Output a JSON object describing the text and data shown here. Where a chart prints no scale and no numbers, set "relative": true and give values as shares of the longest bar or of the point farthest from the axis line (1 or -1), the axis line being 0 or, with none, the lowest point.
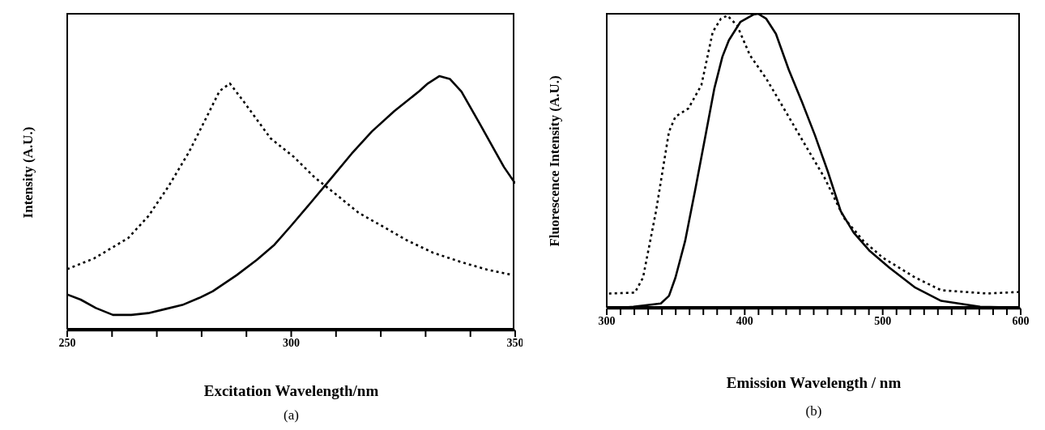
{
  "chart_data": [
    {
      "type": "line",
      "title": "(a)",
      "xlabel": "Excitation Wavelength/nm",
      "ylabel": "Intensity (A.U.)",
      "relative": true,
      "xlim": [
        250,
        350
      ],
      "xticks": [
        250,
        {
          "value": 260,
          "label": null
        },
        {
          "value": 270,
          "label": null
        },
        {
          "value": 280,
          "label": null
        },
        {
          "value": 290,
          "label": null
        },
        300,
        {
          "value": 310,
          "label": null
        },
        {
          "value": 320,
          "label": null
        },
        {
          "value": 330,
          "label": null
        },
        {
          "value": 340,
          "label": null
        },
        350
      ],
      "marker": "none",
      "series": [
        {
          "color": "#000000",
          "line_style": "solid",
          "x": [
            250,
            253,
            256.4,
            260.2,
            264.3,
            268.1,
            271.9,
            275.7,
            279.5,
            282.5,
            287.8,
            292.3,
            296.1,
            299.9,
            304.4,
            309,
            313.5,
            318,
            323,
            328.6,
            330.5,
            333.1,
            335.4,
            338,
            342.2,
            345.6,
            347.5,
            350
          ],
          "values": [
            0.141,
            0.121,
            0.088,
            0.061,
            0.061,
            0.068,
            0.084,
            0.1,
            0.128,
            0.154,
            0.217,
            0.277,
            0.334,
            0.41,
            0.503,
            0.6,
            0.695,
            0.782,
            0.862,
            0.941,
            0.971,
            1.0,
            0.989,
            0.939,
            0.809,
            0.702,
            0.642,
            0.578
          ]
        },
        {
          "color": "#000000",
          "line_style": "dotted",
          "x": [
            250,
            256,
            263.6,
            268.1,
            272.7,
            277.2,
            281,
            284,
            286.3,
            289.3,
            295.4,
            300.6,
            305.2,
            310.4,
            315,
            320.3,
            325.6,
            331.6,
            337.7,
            343.7,
            349.6
          ],
          "values": [
            0.241,
            0.283,
            0.363,
            0.449,
            0.569,
            0.702,
            0.835,
            0.941,
            0.971,
            0.902,
            0.755,
            0.682,
            0.602,
            0.529,
            0.463,
            0.41,
            0.356,
            0.306,
            0.27,
            0.239,
            0.217
          ]
        }
      ]
    },
    {
      "type": "line",
      "title": "(b)",
      "xlabel": "Emission Wavelength / nm",
      "ylabel": "Fluorescence Intensity (A.U.)",
      "relative": true,
      "xlim": [
        300,
        600
      ],
      "xticks": [
        300,
        {
          "value": 310,
          "label": null
        },
        {
          "value": 320,
          "label": null
        },
        {
          "value": 330,
          "label": null
        },
        {
          "value": 340,
          "label": null
        },
        {
          "value": 350,
          "label": null
        },
        {
          "value": 360,
          "label": null
        },
        {
          "value": 370,
          "label": null
        },
        {
          "value": 380,
          "label": null
        },
        {
          "value": 390,
          "label": null
        },
        400,
        {
          "value": 410,
          "label": null
        },
        {
          "value": 420,
          "label": null
        },
        {
          "value": 430,
          "label": null
        },
        {
          "value": 440,
          "label": null
        },
        {
          "value": 450,
          "label": null
        },
        {
          "value": 460,
          "label": null
        },
        {
          "value": 470,
          "label": null
        },
        {
          "value": 480,
          "label": null
        },
        {
          "value": 490,
          "label": null
        },
        500,
        {
          "value": 510,
          "label": null
        },
        {
          "value": 520,
          "label": null
        },
        {
          "value": 530,
          "label": null
        },
        {
          "value": 540,
          "label": null
        },
        {
          "value": 550,
          "label": null
        },
        {
          "value": 560,
          "label": null
        },
        {
          "value": 570,
          "label": null
        },
        {
          "value": 580,
          "label": null
        },
        {
          "value": 590,
          "label": null
        },
        600
      ],
      "marker": "none",
      "series": [
        {
          "color": "#000000",
          "line_style": "solid",
          "x": [
            301.6,
            319.3,
            339.2,
            345.1,
            349.8,
            356.8,
            363.9,
            372.1,
            378,
            383.8,
            388.5,
            396.8,
            406.2,
            409.7,
            415.6,
            422.6,
            432,
            441.4,
            450.8,
            460.2,
            469.6,
            479,
            490.7,
            504.8,
            523.6,
            542.4,
            570.6,
            598.8
          ],
          "values": [
            0,
            0.006,
            0.017,
            0.043,
            0.105,
            0.229,
            0.398,
            0.6,
            0.747,
            0.854,
            0.91,
            0.972,
            0.997,
            1.0,
            0.983,
            0.932,
            0.809,
            0.702,
            0.589,
            0.465,
            0.33,
            0.257,
            0.195,
            0.139,
            0.071,
            0.026,
            0.006,
            0.003
          ]
        },
        {
          "color": "#000000",
          "line_style": "dotted",
          "x": [
            301.6,
            320.4,
            326.3,
            335.7,
            345.1,
            349.8,
            359.2,
            368.6,
            376.8,
            382.7,
            387.4,
            394.4,
            403.8,
            415.6,
            429.7,
            443.8,
            457.9,
            472,
            486.1,
            500.2,
            523.6,
            542.4,
            575.3,
            598.8
          ],
          "values": [
            0.051,
            0.054,
            0.105,
            0.33,
            0.6,
            0.651,
            0.679,
            0.758,
            0.938,
            0.983,
            0.994,
            0.961,
            0.859,
            0.78,
            0.668,
            0.555,
            0.443,
            0.307,
            0.229,
            0.172,
            0.105,
            0.062,
            0.051,
            0.056
          ]
        }
      ]
    }
  ]
}
